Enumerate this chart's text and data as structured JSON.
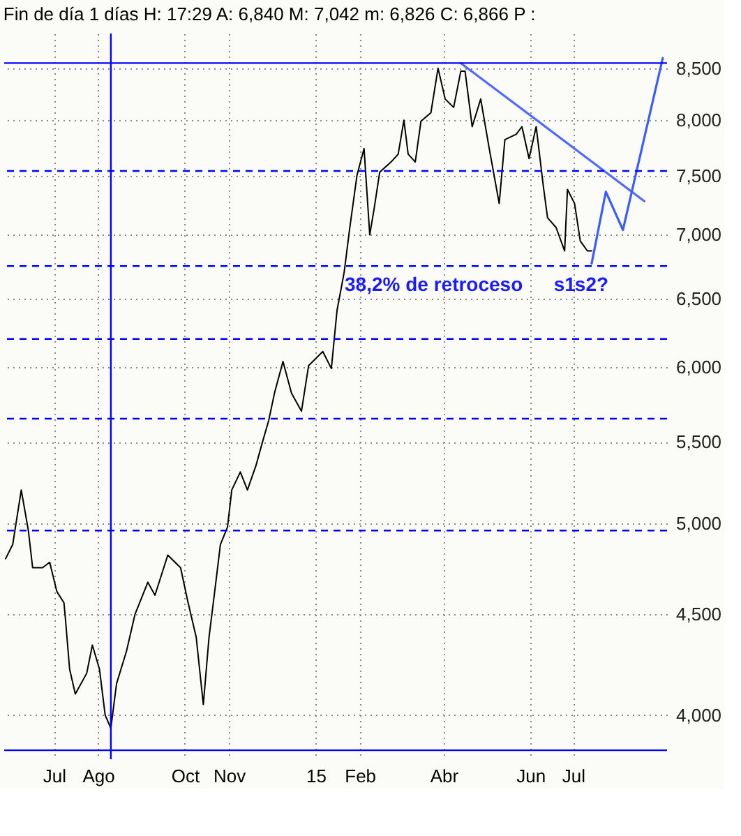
{
  "chart_data": {
    "type": "line",
    "title": "Fin de día 1 días  H: 17:29  A: 6,840  M: 7,042  m: 6,826  C: 6,866  P :",
    "series": [
      {
        "color": "#000000",
        "x": [
          "2014-05-28",
          "2014-06-02",
          "2014-06-08",
          "2014-06-13",
          "2014-06-16",
          "2014-06-23",
          "2014-06-28",
          "2014-07-03",
          "2014-07-08",
          "2014-07-09",
          "2014-07-12",
          "2014-07-16",
          "2014-07-24",
          "2014-07-28",
          "2014-08-02",
          "2014-08-06",
          "2014-08-10",
          "2014-08-14",
          "2014-08-21",
          "2014-08-27",
          "2014-09-05",
          "2014-09-10",
          "2014-09-19",
          "2014-09-28",
          "2014-10-03",
          "2014-10-09",
          "2014-10-14",
          "2014-10-18",
          "2014-10-22",
          "2014-10-26",
          "2014-10-31",
          "2014-11-03",
          "2014-11-09",
          "2014-11-14",
          "2014-11-20",
          "2014-11-24",
          "2014-11-29",
          "2014-12-03",
          "2014-12-09",
          "2014-12-15",
          "2014-12-22",
          "2014-12-27",
          "2015-01-06",
          "2015-01-12",
          "2015-01-16",
          "2015-01-21",
          "2015-01-25",
          "2015-01-30",
          "2015-02-04",
          "2015-02-08",
          "2015-02-11",
          "2015-02-15",
          "2015-02-23",
          "2015-02-28",
          "2015-03-04",
          "2015-03-07",
          "2015-03-12",
          "2015-03-16",
          "2015-03-23",
          "2015-03-28",
          "2015-04-02",
          "2015-04-08",
          "2015-04-13",
          "2015-04-16",
          "2015-04-21",
          "2015-04-27",
          "2015-05-03",
          "2015-05-10",
          "2015-05-14",
          "2015-05-22",
          "2015-05-26",
          "2015-05-31",
          "2015-06-05",
          "2015-06-10",
          "2015-06-13",
          "2015-06-19",
          "2015-06-25",
          "2015-06-27",
          "2015-07-02",
          "2015-07-06",
          "2015-07-11",
          "2015-07-14"
        ],
        "values": [
          4800,
          4880,
          5200,
          4960,
          4750,
          4750,
          4780,
          4620,
          4560,
          4480,
          4220,
          4100,
          4200,
          4340,
          4220,
          4000,
          3940,
          4150,
          4310,
          4500,
          4670,
          4600,
          4820,
          4750,
          4570,
          4380,
          4050,
          4380,
          4620,
          4880,
          4980,
          5200,
          5310,
          5200,
          5350,
          5480,
          5640,
          5820,
          6040,
          5820,
          5700,
          6010,
          6110,
          5990,
          6410,
          6700,
          7060,
          7500,
          7740,
          7000,
          7210,
          7530,
          7620,
          7690,
          8000,
          7690,
          7620,
          7990,
          8070,
          8500,
          8200,
          8120,
          8470,
          8470,
          7940,
          8200,
          7740,
          7260,
          7820,
          7870,
          7940,
          7650,
          7940,
          7410,
          7140,
          7060,
          6870,
          7380,
          7260,
          6950,
          6870,
          6870
        ]
      },
      {
        "color": "#4f6bff",
        "x": [
          "2015-04-13",
          "2015-08-20"
        ],
        "values": [
          8550,
          7280
        ]
      },
      {
        "color": "#3b5bff",
        "x": [
          "2015-07-14",
          "2015-07-24",
          "2015-08-05",
          "2015-09-02"
        ],
        "values": [
          6770,
          7360,
          7040,
          8600
        ]
      }
    ],
    "xlim": [
      "2014-05-27",
      "2015-09-05"
    ],
    "xticks": [
      {
        "value": "2014-07-01",
        "label": "Jul"
      },
      {
        "value": "2014-08-01",
        "label": "Ago"
      },
      {
        "value": "2014-10-01",
        "label": "Oct"
      },
      {
        "value": "2014-11-01",
        "label": "Nov"
      },
      {
        "value": "2015-01-01",
        "label": "15"
      },
      {
        "value": "2015-02-01",
        "label": "Feb"
      },
      {
        "value": "2015-04-01",
        "label": "Abr"
      },
      {
        "value": "2015-06-01",
        "label": "Jun"
      },
      {
        "value": "2015-07-01",
        "label": "Jul"
      }
    ],
    "ylim": [
      3800,
      8850
    ],
    "yticks": [
      {
        "value": 4000,
        "label": "4,000"
      },
      {
        "value": 4500,
        "label": "4,500"
      },
      {
        "value": 5000,
        "label": "5,000"
      },
      {
        "value": 5500,
        "label": "5,500"
      },
      {
        "value": 6000,
        "label": "6,000"
      },
      {
        "value": 6500,
        "label": "6,500"
      },
      {
        "value": 7000,
        "label": "7,000"
      },
      {
        "value": 7500,
        "label": "7,500"
      },
      {
        "value": 8000,
        "label": "8,000"
      },
      {
        "value": 8500,
        "label": "8,500"
      }
    ],
    "log": "y",
    "grid": true,
    "marker": "none",
    "line_style": "solid",
    "ref_lines": [
      {
        "axis": "y",
        "value": 8550,
        "color": "#0000ff",
        "line_style": "solid"
      },
      {
        "axis": "y",
        "value": 3840,
        "color": "#0000ff",
        "line_style": "solid"
      },
      {
        "axis": "y",
        "value": 7540,
        "color": "#0000ff",
        "line_style": "dashed"
      },
      {
        "axis": "y",
        "value": 6750,
        "color": "#0000ff",
        "line_style": "dashed"
      },
      {
        "axis": "y",
        "value": 6200,
        "color": "#0000ff",
        "line_style": "dashed"
      },
      {
        "axis": "y",
        "value": 5650,
        "color": "#0000ff",
        "line_style": "dashed"
      },
      {
        "axis": "y",
        "value": 4960,
        "color": "#0000ff",
        "line_style": "dashed"
      },
      {
        "axis": "x",
        "value": "2014-08-10",
        "color": "#0000ff",
        "line_style": "solid"
      }
    ],
    "annotations": [
      {
        "text": "38,2% de retroceso",
        "x": "2015-03-25",
        "y": 6750
      },
      {
        "text": "s1",
        "x": "2015-06-25",
        "y": 6750
      },
      {
        "text": "s2?",
        "x": "2015-07-14",
        "y": 6750
      }
    ]
  }
}
